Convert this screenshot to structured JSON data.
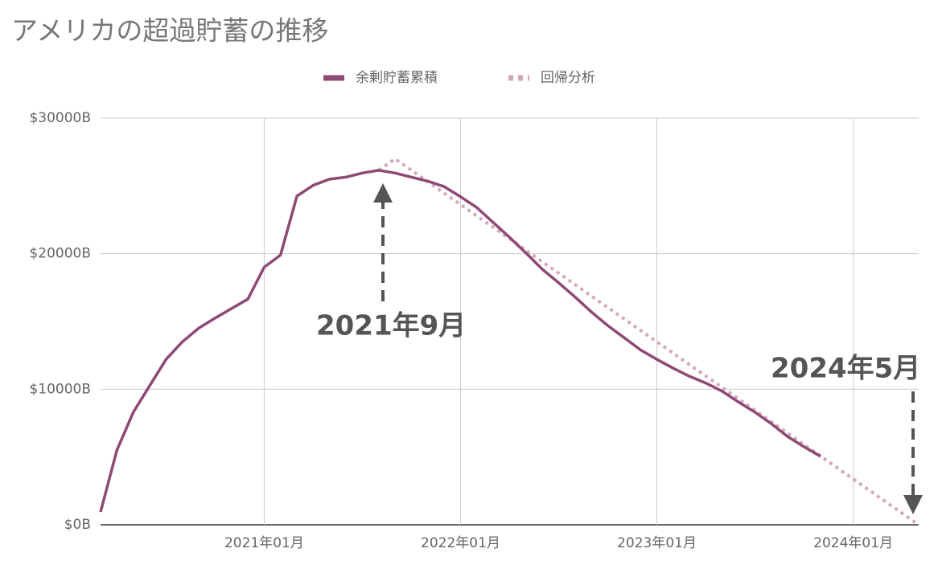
{
  "chart_data": {
    "type": "line",
    "title": "アメリカの超過貯蓄の推移",
    "x": [
      "2020年03月",
      "2020年04月",
      "2020年05月",
      "2020年06月",
      "2020年07月",
      "2020年08月",
      "2020年09月",
      "2020年10月",
      "2020年11月",
      "2020年12月",
      "2021年01月",
      "2021年02月",
      "2021年03月",
      "2021年04月",
      "2021年05月",
      "2021年06月",
      "2021年07月",
      "2021年08月",
      "2021年09月",
      "2021年10月",
      "2021年11月",
      "2021年12月",
      "2022年01月",
      "2022年02月",
      "2022年03月",
      "2022年04月",
      "2022年05月",
      "2022年06月",
      "2022年07月",
      "2022年08月",
      "2022年09月",
      "2022年10月",
      "2022年11月",
      "2022年12月",
      "2023年01月",
      "2023年02月",
      "2023年03月",
      "2023年04月",
      "2023年05月",
      "2023年06月",
      "2023年07月",
      "2023年08月",
      "2023年09月",
      "2023年10月",
      "2023年11月",
      "2023年12月",
      "2024年01月",
      "2024年02月",
      "2024年03月",
      "2024年04月",
      "2024年05月"
    ],
    "series": [
      {
        "name": "余剰貯蓄累積",
        "color": "#8e4a74",
        "dash": false,
        "values": [
          950,
          5500,
          8300,
          10250,
          12200,
          13500,
          14500,
          15250,
          15950,
          16650,
          19000,
          19900,
          24250,
          25050,
          25500,
          25650,
          25950,
          26150,
          25950,
          25650,
          25350,
          24950,
          24200,
          23400,
          22300,
          21200,
          20050,
          18850,
          17850,
          16800,
          15700,
          14700,
          13800,
          12900,
          12200,
          11550,
          10950,
          10450,
          9850,
          9050,
          8300,
          7450,
          6500,
          5750,
          5050,
          null,
          null,
          null,
          null,
          null,
          null
        ]
      },
      {
        "name": "回帰分析",
        "color": "#d6a7bb",
        "dash": true,
        "values": [
          null,
          null,
          null,
          null,
          null,
          null,
          null,
          null,
          null,
          null,
          null,
          null,
          null,
          null,
          null,
          null,
          null,
          26150,
          27000,
          26156,
          25313,
          24469,
          23625,
          22781,
          21938,
          21094,
          20250,
          19406,
          18563,
          17719,
          16875,
          16031,
          15188,
          14344,
          13500,
          12656,
          11813,
          10969,
          10125,
          9281,
          8438,
          7594,
          6750,
          5906,
          5063,
          4219,
          3375,
          2531,
          1688,
          844,
          0
        ]
      }
    ],
    "xlim": [
      "2020年03月",
      "2024年05月"
    ],
    "xticks": [
      "2021年01月",
      "2022年01月",
      "2023年01月",
      "2024年01月"
    ],
    "ylim": [
      0,
      30000
    ],
    "yticks": [
      {
        "value": 0,
        "label": "$0B"
      },
      {
        "value": 10000,
        "label": "$10000B"
      },
      {
        "value": 20000,
        "label": "$20000B"
      },
      {
        "value": 30000,
        "label": "$30000B"
      }
    ],
    "grid": true,
    "legend": "top",
    "annotations": [
      "2021年9月",
      "2024年5月"
    ]
  }
}
